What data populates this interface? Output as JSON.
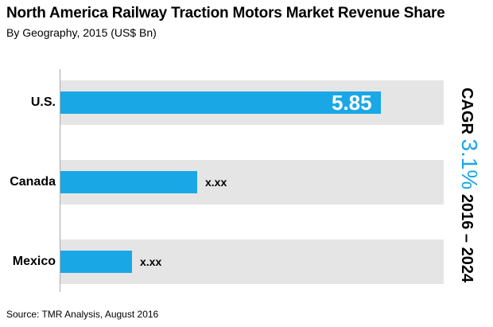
{
  "chart_data": {
    "type": "bar",
    "orientation": "horizontal",
    "title": "North America Railway Traction Motors Market Revenue Share",
    "subtitle": "By Geography, 2015 (US$ Bn)",
    "categories": [
      "U.S.",
      "Canada",
      "Mexico"
    ],
    "values": [
      5.85,
      2.5,
      1.3
    ],
    "value_labels": [
      "5.85",
      "x.xx",
      "x.xx"
    ],
    "xlim": [
      0,
      7.0
    ],
    "xlabel": "",
    "ylabel": "",
    "bar_color": "#1aa7e6",
    "band_color": "#e5e5e5",
    "annotation": {
      "prefix": "CAGR",
      "value": "3.1%",
      "period": "2016 – 2024"
    },
    "source": "Source: TMR Analysis, August 2016"
  }
}
